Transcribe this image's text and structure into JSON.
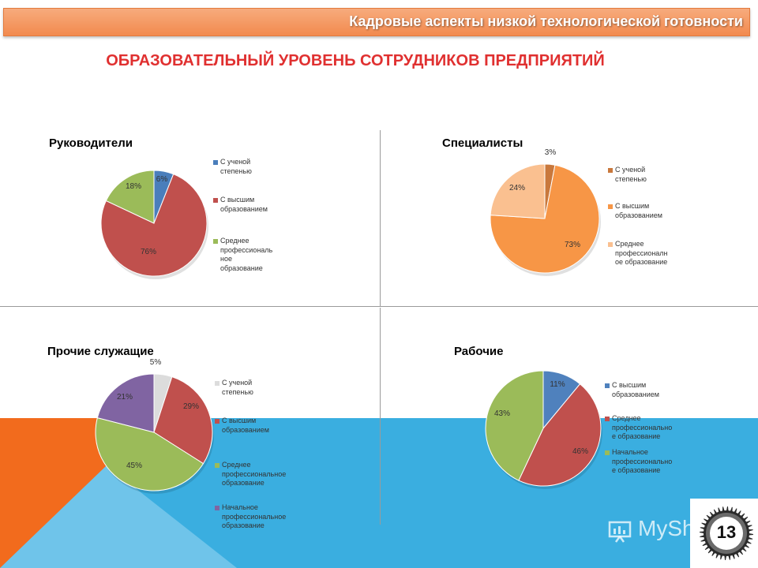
{
  "header": {
    "title": "Кадровые аспекты низкой технологической готовности"
  },
  "main_title": "ОБРАЗОВАТЕЛЬНЫЙ УРОВЕНЬ СОТРУДНИКОВ ПРЕДПРИЯТИЙ",
  "slide_number": "13",
  "logo_text": "MyShared",
  "chart_data": [
    {
      "type": "pie",
      "title": "Руководители",
      "legend_position": "right",
      "labels": [
        "С ученой степенью",
        "С высшим образованием",
        "Среднее профессиональное образование"
      ],
      "legend_lines": [
        [
          "С ученой",
          "степенью"
        ],
        [
          "С высшим",
          "образованием"
        ],
        [
          "Среднее",
          "профессиональ",
          "ное",
          "образование"
        ]
      ],
      "values": [
        6,
        76,
        18
      ],
      "value_labels": [
        "6%",
        "76%",
        "18%"
      ],
      "colors": [
        "#4a7ebb",
        "#c0504d",
        "#9bbb59"
      ]
    },
    {
      "type": "pie",
      "title": "Специалисты",
      "legend_position": "right",
      "labels": [
        "С ученой степенью",
        "С высшим образованием",
        "Среднее профессиональное образование"
      ],
      "legend_lines": [
        [
          "С ученой",
          "степенью"
        ],
        [
          "С высшим",
          "образованием"
        ],
        [
          "Среднее",
          "профессионалн",
          "ое образование"
        ]
      ],
      "values": [
        3,
        73,
        24
      ],
      "value_labels": [
        "3%",
        "73%",
        "24%"
      ],
      "colors": [
        "#c9783c",
        "#f79646",
        "#fac090"
      ]
    },
    {
      "type": "pie",
      "title": "Прочие служащие",
      "legend_position": "right",
      "labels": [
        "С ученой степенью",
        "С высшим образованием",
        "Среднее профессиональное образование",
        "Начальное профессиональное образование"
      ],
      "legend_lines": [
        [
          "С ученой степенью"
        ],
        [
          "С высшим",
          "образованием"
        ],
        [
          "Среднее",
          "профессиональное",
          "образование"
        ],
        [
          "Начальное",
          "профессиональное",
          "образование"
        ]
      ],
      "values": [
        5,
        29,
        45,
        21
      ],
      "value_labels": [
        "5%",
        "29%",
        "45%",
        "21%"
      ],
      "colors": [
        "#dcdcdc",
        "#c0504d",
        "#9bbb59",
        "#8064a2"
      ]
    },
    {
      "type": "pie",
      "title": "Рабочие",
      "legend_position": "right",
      "labels": [
        "С высшим образованием",
        "Среднее профессиональное образование",
        "Начальное профессиональное образование"
      ],
      "legend_lines": [
        [
          "С высшим",
          "образованием"
        ],
        [
          "Среднее",
          "профессионально",
          "е образование"
        ],
        [
          "Начальное",
          "профессионально",
          "е образование"
        ]
      ],
      "values": [
        11,
        46,
        43
      ],
      "value_labels": [
        "11%",
        "46%",
        "43%"
      ],
      "colors": [
        "#4f81bd",
        "#c0504d",
        "#9bbb59"
      ]
    }
  ]
}
